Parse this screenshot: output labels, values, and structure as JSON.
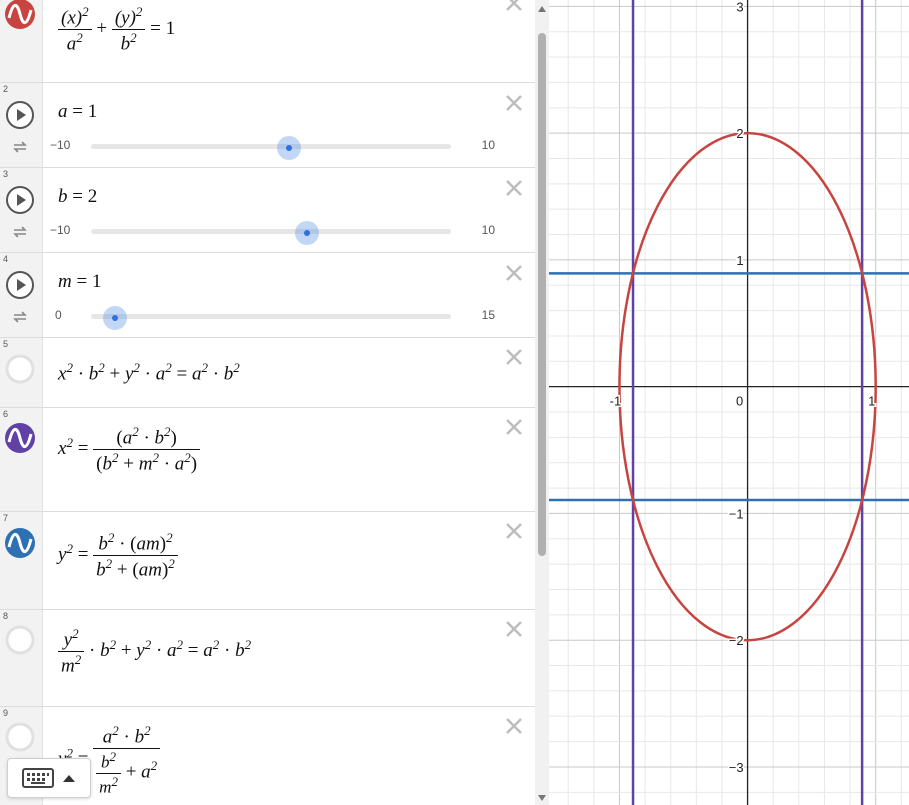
{
  "expressions": [
    {
      "index": "",
      "math_row1": "(x)² / a² + (y)² / b² = 1"
    },
    {
      "index": "2",
      "name": "a",
      "value": "1",
      "min": "−10",
      "max": "10",
      "level_fraction": 0.55
    },
    {
      "index": "3",
      "name": "b",
      "value": "2",
      "min": "−10",
      "max": "10",
      "level_fraction": 0.6
    },
    {
      "index": "4",
      "name": "m",
      "value": "1",
      "min": "0",
      "max": "15",
      "level_fraction": 0.0667
    },
    {
      "index": "5"
    },
    {
      "index": "6"
    },
    {
      "index": "7"
    },
    {
      "index": "8"
    },
    {
      "index": "9"
    }
  ],
  "colors": {
    "red": "#c74440",
    "blue": "#2d70b3",
    "purple": "#6042a6",
    "grid_minor": "#e8e8e8",
    "grid_major": "#c8c8c8",
    "axis": "#222222"
  },
  "graph": {
    "x_range": [
      -1.55,
      1.26
    ],
    "y_range": [
      -3.3,
      3.05
    ],
    "y_tick_labels": [
      "3",
      "2",
      "1",
      "−1",
      "−2",
      "−3"
    ],
    "x_tick_labels": [
      "-1",
      "0",
      "1"
    ],
    "ellipse": {
      "a": 1,
      "b": 2
    },
    "horizontal_lines_y": [
      0.894,
      -0.894
    ],
    "vertical_lines_x": [
      -0.894,
      0.894
    ]
  },
  "icons": {
    "expr1": "red-wave-icon",
    "expr6": "purple-wave-icon",
    "expr7": "blue-wave-icon",
    "keyboard": "keyboard-icon"
  }
}
